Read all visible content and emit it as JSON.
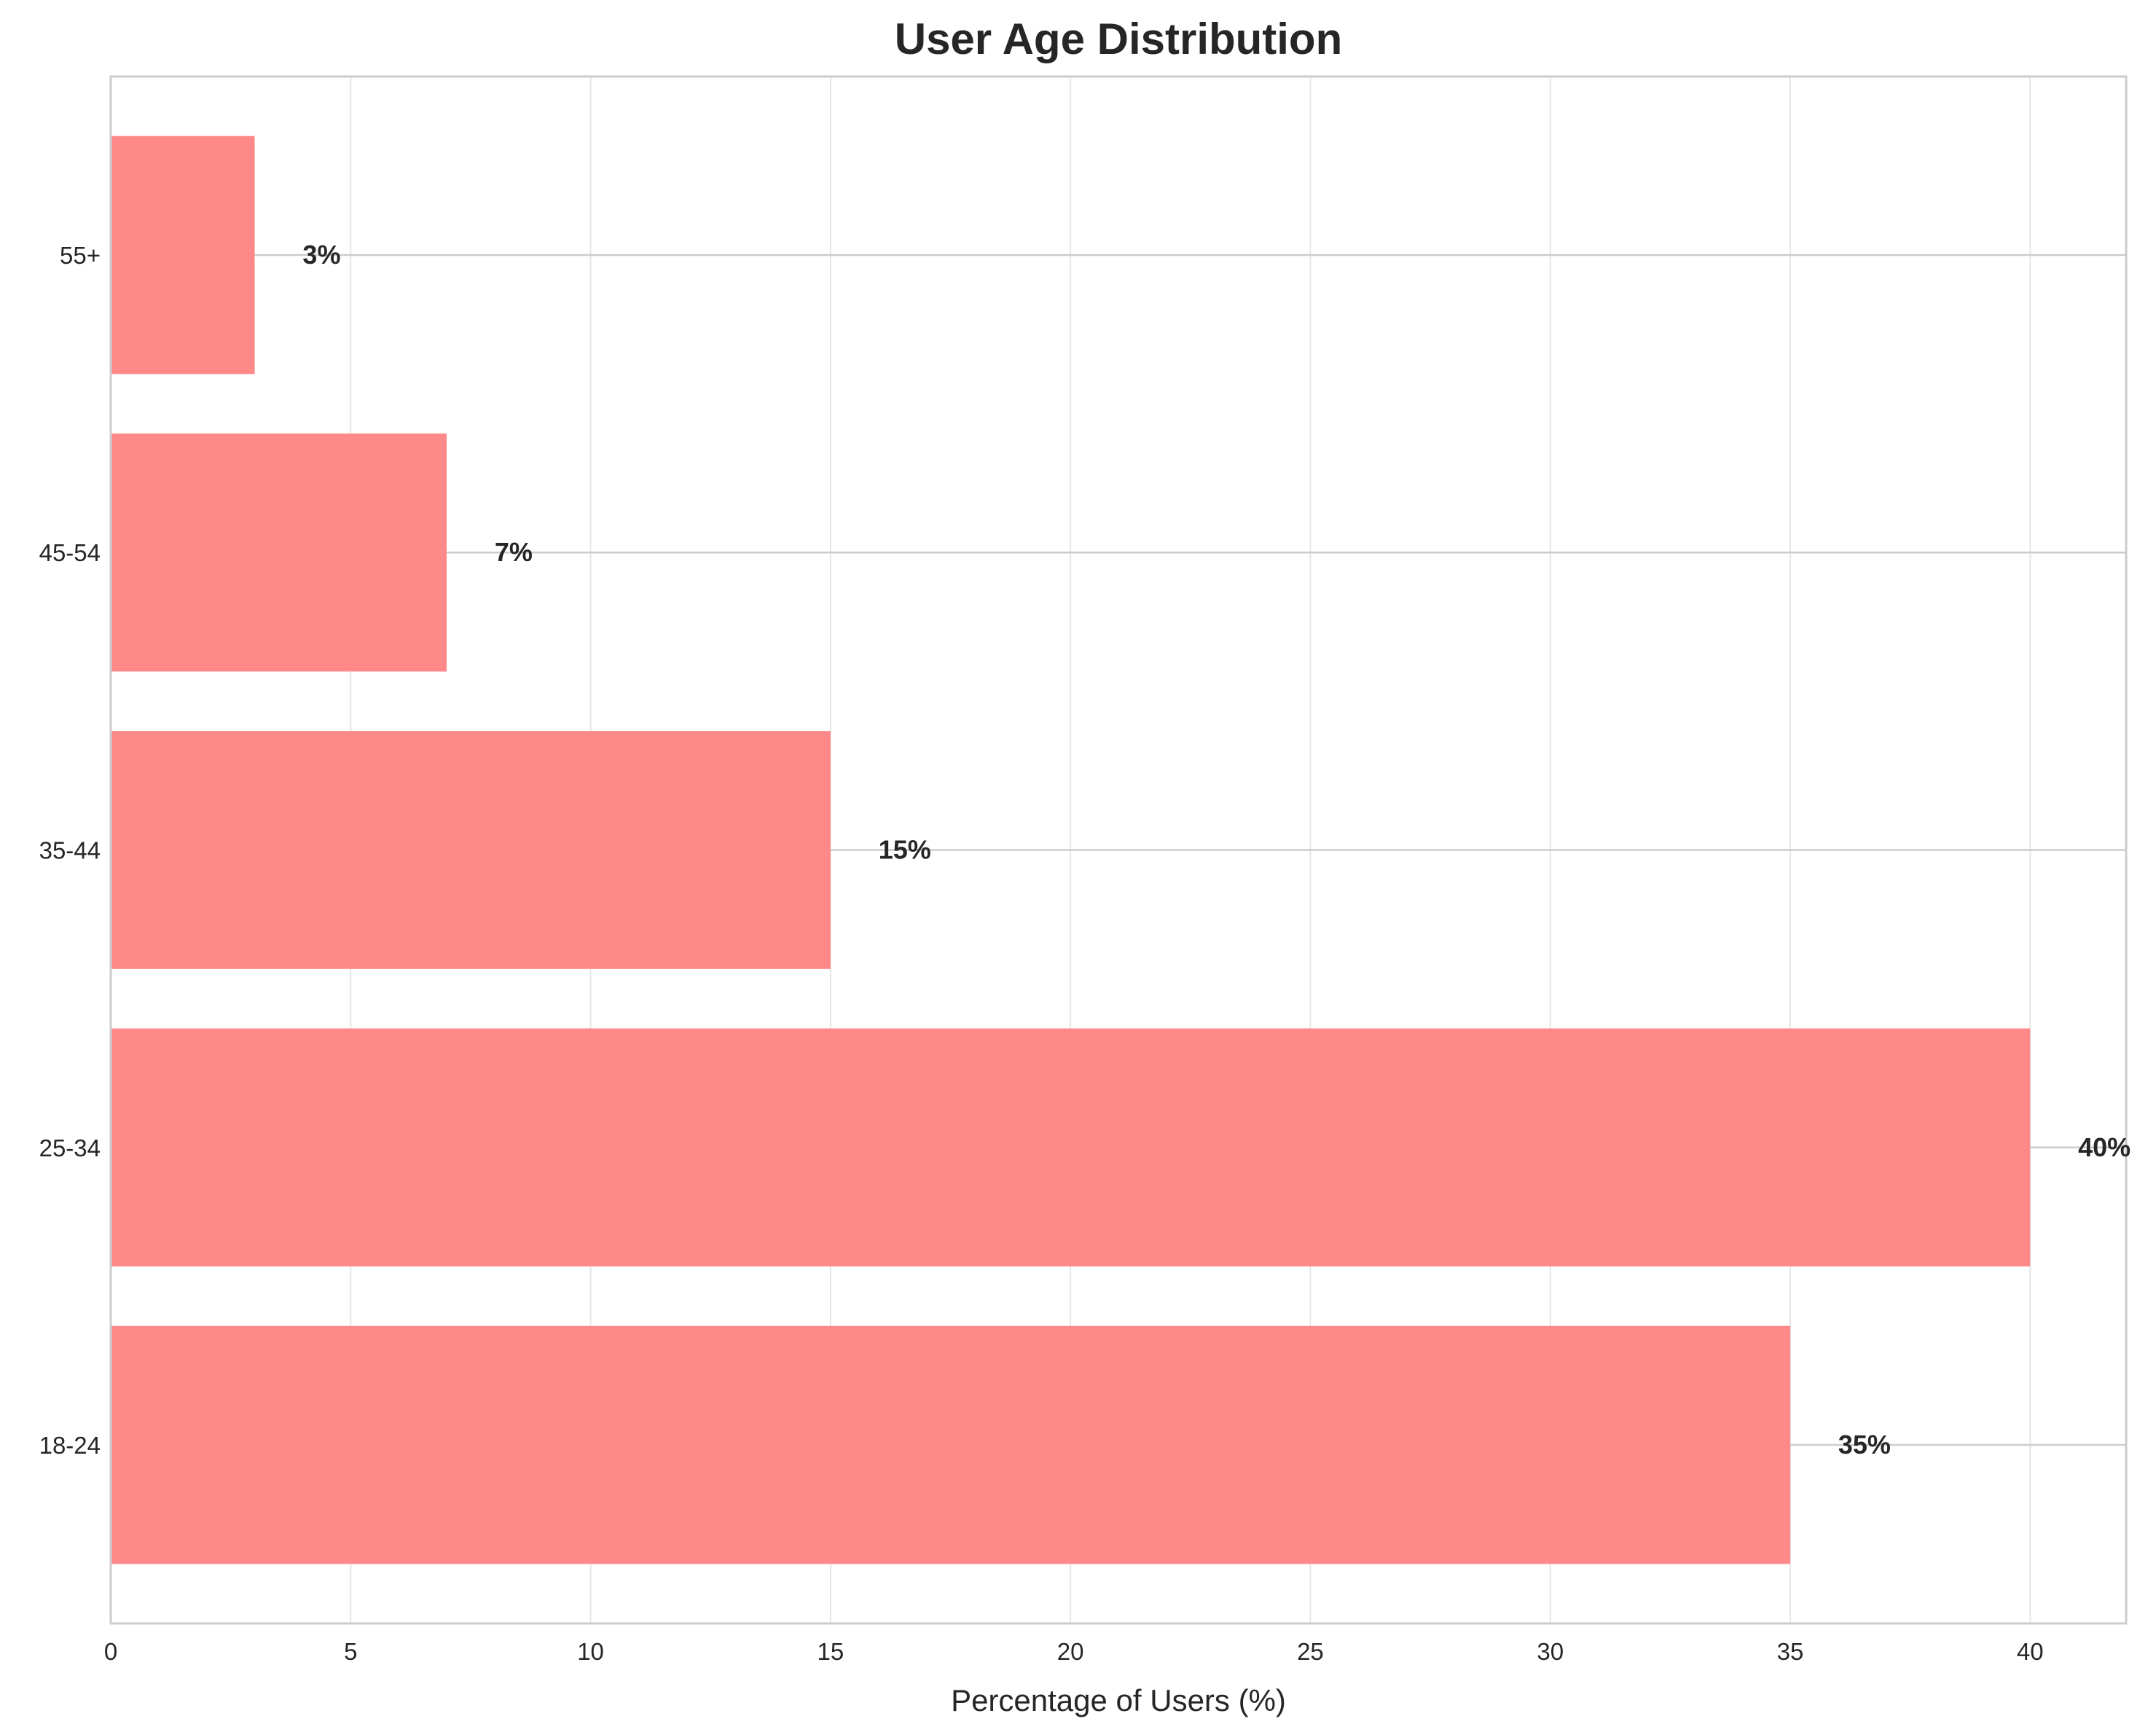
{
  "chart_data": {
    "type": "bar",
    "orientation": "horizontal",
    "title": "User Age Distribution",
    "xlabel": "Percentage of Users (%)",
    "ylabel": "",
    "categories": [
      "18-24",
      "25-34",
      "35-44",
      "45-54",
      "55+"
    ],
    "values": [
      35,
      40,
      15,
      7,
      3
    ],
    "value_labels": [
      "35%",
      "40%",
      "15%",
      "7%",
      "3%"
    ],
    "xticks": [
      "0",
      "5",
      "10",
      "15",
      "20",
      "25",
      "30",
      "35",
      "40"
    ],
    "xlim": [
      0,
      42
    ],
    "grid": true,
    "legend": "none",
    "bar_color": "#ff8888",
    "colors": {
      "text": "#262626",
      "grid": "#e6e6e6",
      "spine": "#cccccc"
    }
  }
}
